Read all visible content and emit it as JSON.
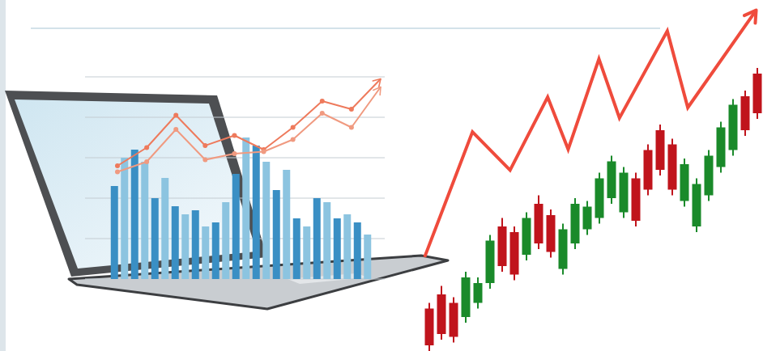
{
  "chart_data": [
    {
      "type": "bar",
      "categories": [
        null,
        null,
        null,
        null,
        null,
        null,
        null,
        null,
        null,
        null,
        null,
        null,
        null,
        null,
        null,
        null,
        null,
        null,
        null,
        null,
        null,
        null,
        null,
        null,
        null,
        null
      ],
      "values": [
        46,
        60,
        64,
        58,
        40,
        50,
        36,
        32,
        34,
        26,
        28,
        38,
        52,
        70,
        66,
        58,
        44,
        54,
        30,
        26,
        40,
        38,
        30,
        32,
        28,
        22
      ],
      "colors": [
        "#3a8fc4",
        "#8cc4e0",
        "#3a8fc4",
        "#8cc4e0",
        "#3a8fc4",
        "#8cc4e0",
        "#3a8fc4",
        "#8cc4e0",
        "#3a8fc4",
        "#8cc4e0",
        "#3a8fc4",
        "#8cc4e0",
        "#3a8fc4",
        "#8cc4e0",
        "#3a8fc4",
        "#8cc4e0",
        "#3a8fc4",
        "#8cc4e0",
        "#3a8fc4",
        "#8cc4e0",
        "#3a8fc4",
        "#8cc4e0",
        "#3a8fc4",
        "#8cc4e0",
        "#3a8fc4",
        "#8cc4e0"
      ],
      "ylim": [
        0,
        100
      ],
      "yticks": [
        0,
        20,
        40,
        60,
        80,
        100
      ],
      "grid": true,
      "tick_labels": false
    },
    {
      "type": "line",
      "categories": [
        null,
        null,
        null,
        null,
        null,
        null,
        null,
        null,
        null,
        null
      ],
      "series": [
        {
          "color": "#ee7a5c",
          "marker": "circle",
          "values": [
            56,
            65,
            81,
            66,
            71,
            64,
            75,
            88,
            84,
            99
          ]
        },
        {
          "color": "#f09a80",
          "marker": "circle",
          "values": [
            53,
            58,
            74,
            59,
            62,
            63,
            69,
            82,
            75,
            95
          ]
        }
      ],
      "ylim": [
        0,
        100
      ],
      "tick_labels": false
    },
    {
      "type": "line",
      "x": [
        1,
        15,
        26,
        37,
        43,
        52,
        58,
        72,
        78,
        98
      ],
      "values": [
        27,
        63,
        52,
        73,
        58,
        84,
        67,
        92,
        70,
        98
      ],
      "color": "#ef4b3c",
      "xlim": [
        0,
        100
      ],
      "ylim": [
        0,
        100
      ],
      "tick_labels": false
    },
    {
      "type": "candlestick",
      "categories": [
        null,
        null,
        null,
        null,
        null,
        null,
        null,
        null,
        null,
        null,
        null,
        null,
        null,
        null,
        null,
        null,
        null,
        null,
        null,
        null,
        null,
        null,
        null,
        null,
        null,
        null,
        null,
        null
      ],
      "open": [
        15,
        20,
        17,
        12,
        17,
        24,
        44,
        42,
        34,
        52,
        48,
        29,
        38,
        43,
        47,
        54,
        49,
        61,
        71,
        78,
        73,
        53,
        44,
        55,
        65,
        71,
        90,
        98
      ],
      "high": [
        17,
        23,
        19,
        28,
        26,
        41,
        47,
        44,
        49,
        55,
        50,
        45,
        54,
        53,
        63,
        69,
        65,
        63,
        73,
        80,
        75,
        68,
        61,
        71,
        81,
        89,
        92,
        100
      ],
      "low": [
        0,
        4,
        3,
        10,
        15,
        22,
        28,
        25,
        32,
        36,
        33,
        27,
        36,
        41,
        45,
        52,
        47,
        44,
        55,
        62,
        55,
        51,
        42,
        53,
        63,
        69,
        76,
        82
      ],
      "close": [
        2,
        6,
        5,
        26,
        24,
        39,
        30,
        27,
        47,
        38,
        35,
        43,
        52,
        51,
        61,
        67,
        63,
        46,
        57,
        64,
        57,
        66,
        59,
        69,
        79,
        87,
        78,
        84
      ],
      "colors": [
        "#c0141c",
        "#c0141c",
        "#c0141c",
        "#1a8a2a",
        "#1a8a2a",
        "#1a8a2a",
        "#c0141c",
        "#c0141c",
        "#1a8a2a",
        "#c0141c",
        "#c0141c",
        "#1a8a2a",
        "#1a8a2a",
        "#1a8a2a",
        "#1a8a2a",
        "#1a8a2a",
        "#1a8a2a",
        "#c0141c",
        "#c0141c",
        "#c0141c",
        "#c0141c",
        "#1a8a2a",
        "#1a8a2a",
        "#1a8a2a",
        "#1a8a2a",
        "#1a8a2a",
        "#c0141c",
        "#c0141c"
      ],
      "ylim": [
        0,
        100
      ],
      "tick_labels": false
    }
  ]
}
